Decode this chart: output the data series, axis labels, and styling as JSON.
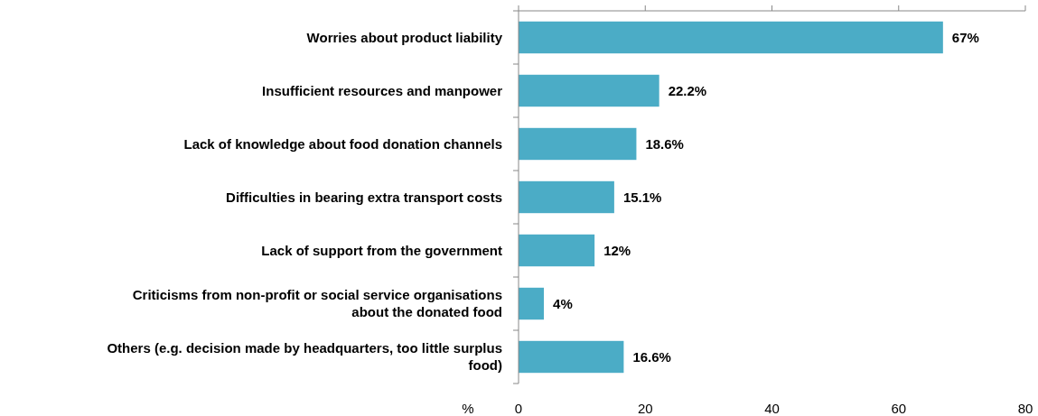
{
  "chart_data": {
    "type": "bar",
    "orientation": "horizontal",
    "categories": [
      "Worries about product liability",
      "Insufficient resources and manpower",
      "Lack of knowledge about food donation channels",
      "Difficulties in bearing extra transport costs",
      "Lack of support from the government",
      "Criticisms from non-profit or social service organisations about the donated food",
      "Others (e.g. decision made by headquarters, too little surplus food)"
    ],
    "values": [
      67,
      22.2,
      18.6,
      15.1,
      12,
      4,
      16.6
    ],
    "value_labels": [
      "67%",
      "22.2%",
      "18.6%",
      "15.1%",
      "12%",
      "4%",
      "16.6%"
    ],
    "color": "#4bacc6",
    "xlabel": "%",
    "xlim": [
      0,
      80
    ],
    "xticks": [
      0,
      20,
      40,
      60,
      80
    ],
    "grid": false
  }
}
